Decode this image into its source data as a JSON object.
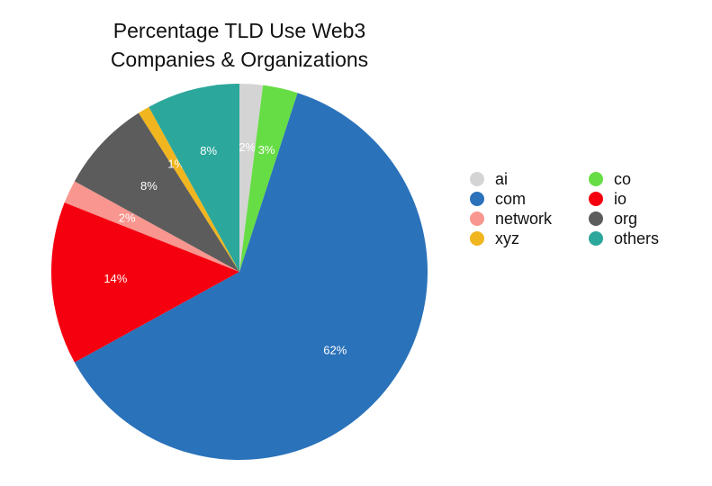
{
  "chart_data": {
    "type": "pie",
    "title": [
      "Percentage TLD Use Web3",
      "Companies & Organizations"
    ],
    "categories": [
      "ai",
      "co",
      "com",
      "io",
      "network",
      "org",
      "xyz",
      "others"
    ],
    "values": [
      2,
      3,
      62,
      14,
      2,
      8,
      1,
      8
    ],
    "value_labels": [
      "2%",
      "3%",
      "62%",
      "14%",
      "2%",
      "8%",
      "1%",
      "8%"
    ],
    "colors": [
      "#d4d4d4",
      "#66dd44",
      "#2a72ba",
      "#f5000f",
      "#f8968f",
      "#5c5c5c",
      "#f0b51f",
      "#2ba89b"
    ],
    "legend": "right"
  }
}
